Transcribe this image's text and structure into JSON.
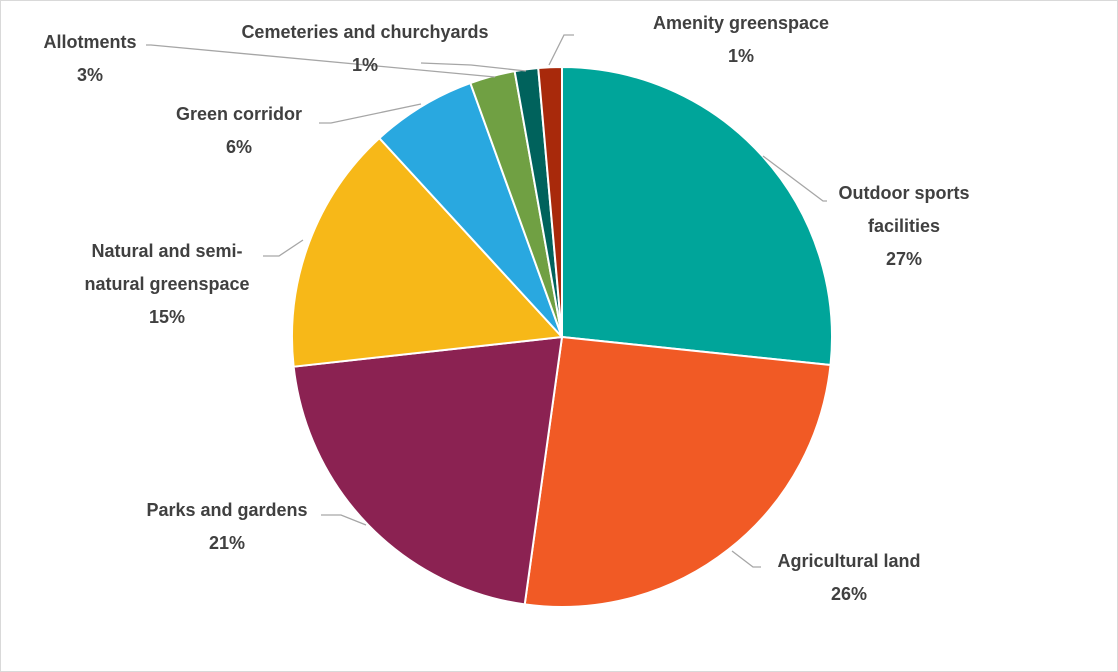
{
  "chart_data": {
    "type": "pie",
    "title": "",
    "legend": "none",
    "slices": [
      {
        "label_lines": [
          "Outdoor sports",
          "facilities"
        ],
        "value": 26.6,
        "value_label": "27%",
        "color": "#00A59A"
      },
      {
        "label_lines": [
          "Agricultural land"
        ],
        "value": 25.5,
        "value_label": "26%",
        "color": "#F15A25"
      },
      {
        "label_lines": [
          "Parks and gardens"
        ],
        "value": 21.0,
        "value_label": "21%",
        "color": "#8B2252"
      },
      {
        "label_lines": [
          "Natural and semi-",
          "natural greenspace"
        ],
        "value": 14.9,
        "value_label": "15%",
        "color": "#F7B818"
      },
      {
        "label_lines": [
          "Green corridor"
        ],
        "value": 6.3,
        "value_label": "6%",
        "color": "#29A8E0"
      },
      {
        "label_lines": [
          "Allotments"
        ],
        "value": 2.7,
        "value_label": "3%",
        "color": "#70A043"
      },
      {
        "label_lines": [
          "Cemeteries and churchyards"
        ],
        "value": 1.4,
        "value_label": "1%",
        "color": "#00625C"
      },
      {
        "label_lines": [
          "Amenity greenspace"
        ],
        "value": 1.4,
        "value_label": "1%",
        "color": "#A8290B"
      }
    ]
  }
}
